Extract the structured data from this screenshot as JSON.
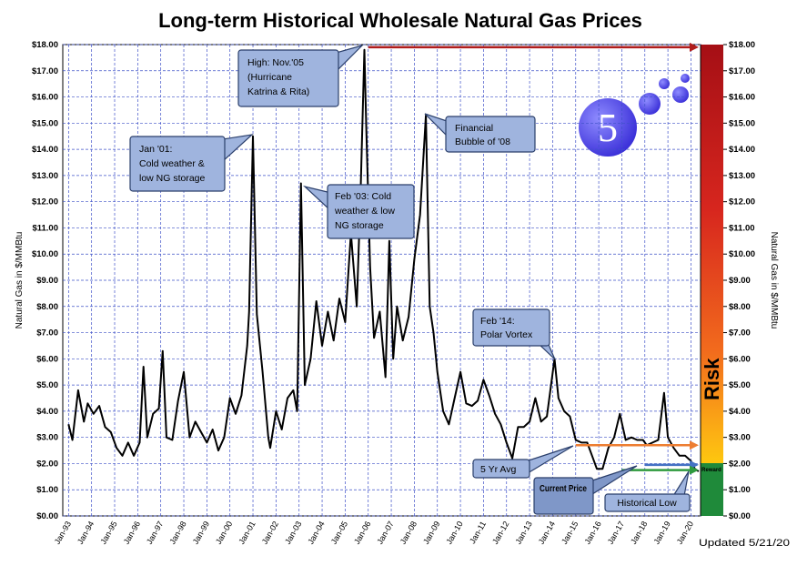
{
  "chart_data": {
    "type": "line",
    "title": "Long-term Historical Wholesale Natural Gas Prices",
    "y_label": "Natural Gas in $/MMBtu",
    "y2_label": "Natural Gas in $/MMBtu",
    "updated": "Updated 5/21/20",
    "logo_text": "5",
    "risk_label": "Risk",
    "reward_label": "Reward",
    "grid": true,
    "xlim": [
      "Oct-92",
      "Jun-20"
    ],
    "xticks": [
      "Jan-93",
      "Jan-94",
      "Jan-95",
      "Jan-96",
      "Jan-97",
      "Jan-98",
      "Jan-99",
      "Jan-00",
      "Jan-01",
      "Jan-02",
      "Jan-03",
      "Jan-04",
      "Jan-05",
      "Jan-06",
      "Jan-07",
      "Jan-08",
      "Jan-09",
      "Jan-10",
      "Jan-11",
      "Jan-12",
      "Jan-13",
      "Jan-14",
      "Jan-15",
      "Jan-16",
      "Jan-17",
      "Jan-18",
      "Jan-19",
      "Jan-20"
    ],
    "ylim": [
      0,
      18
    ],
    "y2lim": [
      0,
      18
    ],
    "yticks": [
      {
        "value": 0,
        "label": "$0.00"
      },
      {
        "value": 1,
        "label": "$1.00"
      },
      {
        "value": 2,
        "label": "$2.00"
      },
      {
        "value": 3,
        "label": "$3.00"
      },
      {
        "value": 4,
        "label": "$4.00"
      },
      {
        "value": 5,
        "label": "$5.00"
      },
      {
        "value": 6,
        "label": "$6.00"
      },
      {
        "value": 7,
        "label": "$7.00"
      },
      {
        "value": 8,
        "label": "$8.00"
      },
      {
        "value": 9,
        "label": "$9.00"
      },
      {
        "value": 10,
        "label": "$10.00"
      },
      {
        "value": 11,
        "label": "$11.00"
      },
      {
        "value": 12,
        "label": "$12.00"
      },
      {
        "value": 13,
        "label": "$13.00"
      },
      {
        "value": 14,
        "label": "$14.00"
      },
      {
        "value": 15,
        "label": "$15.00"
      },
      {
        "value": 16,
        "label": "$16.00"
      },
      {
        "value": 17,
        "label": "$17.00"
      },
      {
        "value": 18,
        "label": "$18.00"
      }
    ],
    "y2ticks": [
      {
        "value": 0,
        "label": "$0.00"
      },
      {
        "value": 1,
        "label": "$1.00"
      },
      {
        "value": 2,
        "label": "$2.00"
      },
      {
        "value": 3,
        "label": "$3.00"
      },
      {
        "value": 4,
        "label": "$4.00"
      },
      {
        "value": 5,
        "label": "$5.00"
      },
      {
        "value": 6,
        "label": "$6.00"
      },
      {
        "value": 7,
        "label": "$7.00"
      },
      {
        "value": 8,
        "label": "$8.00"
      },
      {
        "value": 9,
        "label": "$9.00"
      },
      {
        "value": 10,
        "label": "$10.00"
      },
      {
        "value": 11,
        "label": "$11.00"
      },
      {
        "value": 12,
        "label": "$12.00"
      },
      {
        "value": 13,
        "label": "$13.00"
      },
      {
        "value": 14,
        "label": "$14.00"
      },
      {
        "value": 15,
        "label": "$15.00"
      },
      {
        "value": 16,
        "label": "$16.00"
      },
      {
        "value": 17,
        "label": "$17.00"
      },
      {
        "value": 18,
        "label": "$18.00"
      }
    ],
    "x": [
      "Jan-93",
      "Mar-93",
      "Jun-93",
      "Sep-93",
      "Nov-93",
      "Feb-94",
      "May-94",
      "Aug-94",
      "Nov-94",
      "Feb-95",
      "May-95",
      "Aug-95",
      "Nov-95",
      "Feb-96",
      "Apr-96",
      "Jun-96",
      "Sep-96",
      "Dec-96",
      "Feb-97",
      "Apr-97",
      "Jul-97",
      "Oct-97",
      "Jan-98",
      "Apr-98",
      "Jul-98",
      "Oct-98",
      "Jan-99",
      "Apr-99",
      "Jul-99",
      "Oct-99",
      "Jan-00",
      "Apr-00",
      "Jul-00",
      "Oct-00",
      "Nov-00",
      "Jan-01",
      "Mar-01",
      "Jun-01",
      "Sep-01",
      "Oct-01",
      "Jan-02",
      "Apr-02",
      "Jul-02",
      "Oct-02",
      "Dec-02",
      "Feb-03",
      "Apr-03",
      "Jul-03",
      "Oct-03",
      "Jan-04",
      "Apr-04",
      "Jul-04",
      "Oct-04",
      "Jan-05",
      "Apr-05",
      "Jul-05",
      "Sep-05",
      "Nov-05",
      "Dec-05",
      "Feb-06",
      "Apr-06",
      "Jul-06",
      "Oct-06",
      "Dec-06",
      "Feb-07",
      "Apr-07",
      "Jul-07",
      "Oct-07",
      "Jan-08",
      "Apr-08",
      "Jul-08",
      "Sep-08",
      "Nov-08",
      "Jan-09",
      "Apr-09",
      "Jul-09",
      "Oct-09",
      "Jan-10",
      "Apr-10",
      "Jul-10",
      "Oct-10",
      "Jan-11",
      "Apr-11",
      "Jul-11",
      "Oct-11",
      "Jan-12",
      "Apr-12",
      "Jul-12",
      "Oct-12",
      "Jan-13",
      "Apr-13",
      "Jul-13",
      "Oct-13",
      "Feb-14",
      "Apr-14",
      "Jul-14",
      "Oct-14",
      "Jan-15",
      "Apr-15",
      "Jul-15",
      "Oct-15",
      "Dec-15",
      "Mar-16",
      "Jun-16",
      "Sep-16",
      "Dec-16",
      "Mar-17",
      "Jun-17",
      "Sep-17",
      "Dec-17",
      "Feb-18",
      "May-18",
      "Aug-18",
      "Nov-18",
      "Jan-19",
      "Apr-19",
      "Jul-19",
      "Oct-19",
      "Jan-20",
      "Mar-20",
      "May-20"
    ],
    "series": [
      {
        "color": "#000000",
        "values": [
          3.5,
          2.9,
          4.8,
          3.6,
          4.3,
          3.9,
          4.2,
          3.4,
          3.2,
          2.6,
          2.3,
          2.8,
          2.3,
          2.8,
          5.7,
          3.0,
          3.9,
          4.1,
          6.3,
          3.0,
          2.9,
          4.4,
          5.5,
          3.0,
          3.6,
          3.2,
          2.8,
          3.3,
          2.5,
          3.0,
          4.5,
          3.9,
          4.6,
          6.5,
          7.8,
          14.5,
          7.7,
          5.5,
          3.0,
          2.6,
          4.0,
          3.3,
          4.5,
          4.8,
          4.0,
          12.7,
          5.0,
          6.0,
          8.2,
          6.5,
          7.8,
          6.7,
          8.3,
          7.4,
          10.8,
          8.0,
          12.3,
          17.8,
          14.8,
          9.5,
          6.8,
          7.8,
          5.3,
          10.5,
          6.0,
          8.0,
          6.7,
          7.6,
          9.8,
          11.5,
          15.3,
          8.0,
          7.0,
          5.5,
          4.0,
          3.5,
          4.5,
          5.5,
          4.3,
          4.2,
          4.4,
          5.2,
          4.6,
          3.9,
          3.5,
          2.8,
          2.2,
          3.4,
          3.4,
          3.6,
          4.5,
          3.6,
          3.8,
          6.0,
          4.5,
          4.0,
          3.8,
          2.9,
          2.8,
          2.8,
          2.2,
          1.8,
          1.8,
          2.6,
          3.0,
          3.9,
          2.9,
          3.0,
          2.9,
          2.9,
          2.7,
          2.8,
          2.9,
          4.7,
          3.0,
          2.6,
          2.3,
          2.3,
          2.1,
          1.8,
          1.7
        ]
      }
    ],
    "reference_lines": [
      {
        "value": 17.9,
        "x_start": "Jan-06",
        "color": "#b01c1c"
      },
      {
        "label": "5 Yr Avg",
        "value": 2.7,
        "x_start": "Jan-15",
        "color": "#ed7d31"
      },
      {
        "label": "Current Price",
        "value": 1.95,
        "x_start": "Jan-18",
        "color": "#4472c4"
      },
      {
        "label": "Historical Low",
        "value": 1.75,
        "x_start": "Jan-17",
        "color": "#2e9a3e"
      }
    ],
    "annotations": [
      {
        "lines": [
          "High: Nov.'05",
          "(Hurricane",
          "Katrina & Rita)"
        ]
      },
      {
        "lines": [
          "Jan '01:",
          "Cold weather &",
          "low NG storage"
        ]
      },
      {
        "lines": [
          "Feb '03: Cold",
          "weather & low",
          "NG storage"
        ]
      },
      {
        "lines": [
          "Financial",
          "Bubble of '08"
        ]
      },
      {
        "lines": [
          "Feb '14:",
          "Polar Vortex"
        ]
      }
    ]
  }
}
